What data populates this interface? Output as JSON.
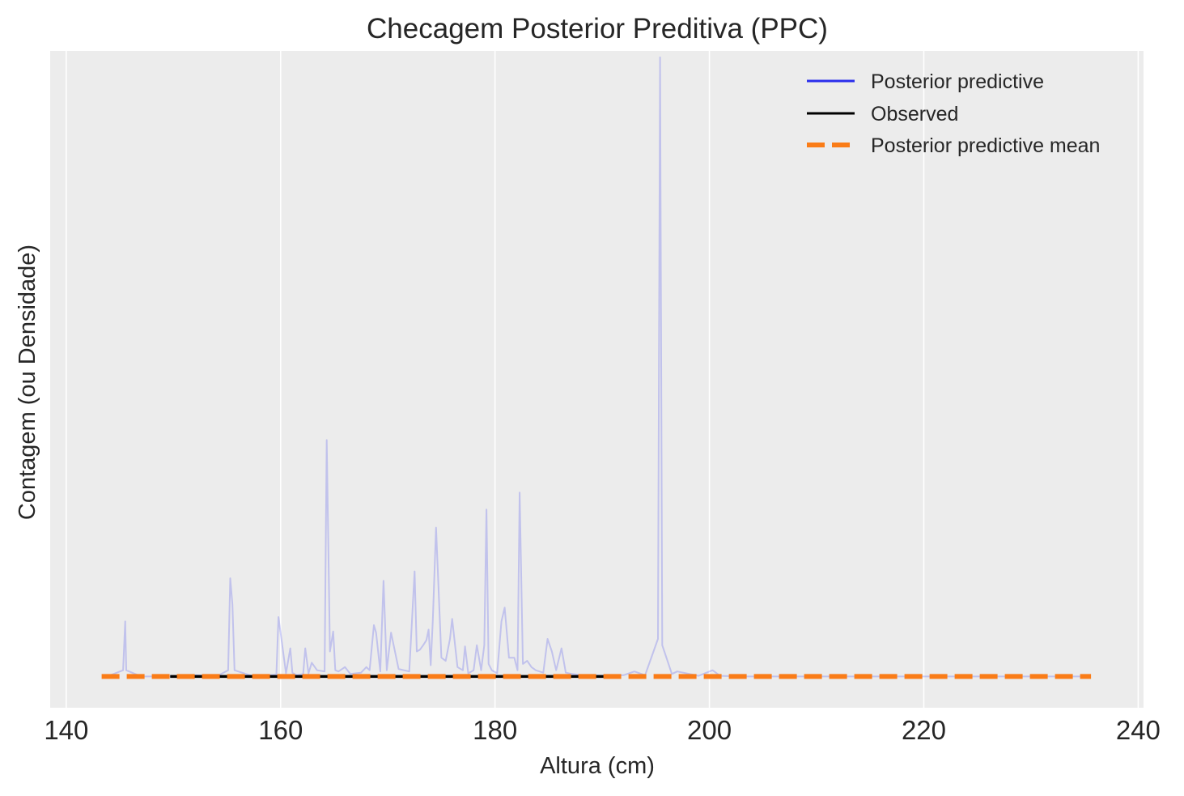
{
  "chart_data": {
    "type": "line",
    "title": "Checagem Posterior Preditiva (PPC)",
    "xlabel": "Altura (cm)",
    "ylabel": "Contagem (ou Densidade)",
    "xlim": [
      138.5,
      240.5
    ],
    "ylim": [
      -0.05,
      1.0
    ],
    "x_ticks": [
      140,
      160,
      180,
      200,
      220,
      240
    ],
    "y_ticks": [],
    "grid": true,
    "legend_position": "top-right",
    "colors": {
      "posterior_predictive": "#2a2eec",
      "observed": "#000000",
      "posterior_predictive_mean": "#fa7c17",
      "background": "#ececec",
      "grid": "#ffffff"
    },
    "series": [
      {
        "name": "Posterior predictive",
        "style": "solid",
        "opacity": 0.22,
        "x": [
          143.8,
          145.3,
          145.5,
          145.6,
          147.0,
          150.0,
          152.0,
          154.0,
          155.1,
          155.3,
          155.5,
          155.7,
          157.5,
          159.6,
          159.8,
          160.5,
          160.9,
          161.1,
          161.5,
          162.1,
          162.3,
          162.6,
          162.9,
          163.4,
          164.1,
          164.3,
          164.6,
          164.9,
          165.1,
          165.4,
          166.0,
          166.5,
          167.5,
          168.0,
          168.3,
          168.7,
          168.9,
          169.3,
          169.6,
          169.9,
          170.3,
          170.6,
          171.0,
          171.5,
          172.0,
          172.5,
          172.7,
          173.0,
          173.3,
          173.6,
          173.8,
          174.0,
          174.2,
          174.5,
          175.0,
          175.4,
          175.8,
          176.0,
          176.5,
          177.0,
          177.2,
          177.5,
          178.0,
          178.3,
          178.7,
          179.0,
          179.2,
          179.4,
          179.7,
          180.2,
          180.6,
          180.9,
          181.3,
          181.8,
          182.1,
          182.3,
          182.6,
          183.0,
          183.4,
          183.8,
          184.5,
          184.9,
          185.3,
          185.7,
          186.2,
          186.6,
          187.2,
          188.0,
          190.0,
          192.0,
          193.0,
          194.0,
          195.2,
          195.4,
          195.6,
          196.5,
          197.0,
          199.0,
          200.3,
          201.0,
          203.0,
          210.0,
          220.0,
          230.0,
          235.3
        ],
        "y": [
          0.0,
          0.01,
          0.088,
          0.01,
          0.0,
          0.0,
          0.002,
          0.0,
          0.01,
          0.157,
          0.115,
          0.01,
          0.0,
          0.003,
          0.095,
          0.005,
          0.045,
          0.006,
          0.002,
          0.004,
          0.045,
          0.005,
          0.022,
          0.01,
          0.008,
          0.378,
          0.04,
          0.072,
          0.01,
          0.008,
          0.015,
          0.004,
          0.006,
          0.015,
          0.01,
          0.082,
          0.07,
          0.008,
          0.153,
          0.01,
          0.07,
          0.045,
          0.012,
          0.01,
          0.008,
          0.168,
          0.04,
          0.043,
          0.05,
          0.058,
          0.075,
          0.018,
          0.09,
          0.238,
          0.03,
          0.025,
          0.06,
          0.092,
          0.015,
          0.01,
          0.048,
          0.005,
          0.01,
          0.05,
          0.01,
          0.05,
          0.267,
          0.02,
          0.01,
          0.005,
          0.088,
          0.11,
          0.03,
          0.03,
          0.01,
          0.294,
          0.02,
          0.025,
          0.015,
          0.01,
          0.006,
          0.06,
          0.04,
          0.01,
          0.045,
          0.006,
          0.004,
          0.002,
          0.001,
          0.002,
          0.008,
          0.002,
          0.06,
          0.99,
          0.05,
          0.004,
          0.008,
          0.001,
          0.01,
          0.001,
          0.0,
          0.0,
          0.0,
          0.0,
          0.0
        ]
      },
      {
        "name": "Observed",
        "style": "solid",
        "x": [
          149.7,
          155.0,
          160.0,
          165.0,
          170.0,
          175.0,
          180.0,
          185.0,
          191.0
        ],
        "y": [
          0.0,
          0.0,
          0.0,
          0.0,
          0.0,
          0.0,
          0.0,
          0.0,
          0.0
        ]
      },
      {
        "name": "Posterior predictive mean",
        "style": "dashed",
        "x": [
          143.3,
          150.0,
          160.0,
          170.0,
          180.0,
          190.0,
          200.0,
          210.0,
          220.0,
          230.0,
          235.6
        ],
        "y": [
          0.0,
          0.0,
          0.0,
          0.0,
          0.0,
          0.0,
          0.0,
          0.0,
          0.0,
          0.0,
          0.0
        ]
      }
    ]
  }
}
